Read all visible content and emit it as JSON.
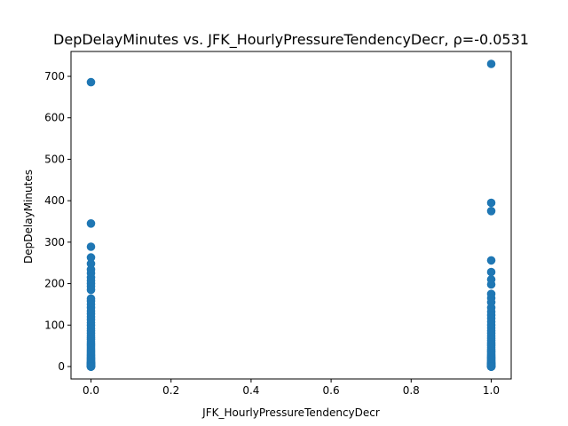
{
  "chart_data": {
    "type": "scatter",
    "title": "DepDelayMinutes vs. JFK_HourlyPressureTendencyDecr, ρ=-0.0531",
    "xlabel": "JFK_HourlyPressureTendencyDecr",
    "ylabel": "DepDelayMinutes",
    "xlim": [
      -0.05,
      1.05
    ],
    "ylim": [
      -30,
      760
    ],
    "grid": false,
    "legend": "none",
    "x_ticks": [
      0.0,
      0.2,
      0.4,
      0.6,
      0.8,
      1.0
    ],
    "x_tick_labels": [
      "0.0",
      "0.2",
      "0.4",
      "0.6",
      "0.8",
      "1.0"
    ],
    "y_ticks": [
      0,
      100,
      200,
      300,
      400,
      500,
      600,
      700
    ],
    "y_tick_labels": [
      "0",
      "100",
      "200",
      "300",
      "400",
      "500",
      "600",
      "700"
    ],
    "series": [
      {
        "color": "#1f77b4",
        "x": [
          0,
          0,
          0,
          0,
          0,
          0,
          0,
          0,
          0,
          0,
          0,
          0,
          0,
          0,
          0,
          0,
          0,
          0,
          0,
          0,
          0,
          0,
          0,
          0,
          0,
          0,
          0,
          0,
          0,
          0,
          0,
          0,
          0,
          0,
          0,
          0,
          0,
          0,
          0,
          0,
          0,
          0,
          0,
          0,
          0,
          0,
          0,
          0,
          0,
          0,
          0,
          0,
          0,
          0,
          0,
          0,
          0,
          0,
          0,
          0,
          0,
          0,
          0,
          0,
          1,
          1,
          1,
          1,
          1,
          1,
          1,
          1,
          1,
          1,
          1,
          1,
          1,
          1,
          1,
          1,
          1,
          1,
          1,
          1,
          1,
          1,
          1,
          1,
          1,
          1,
          1,
          1,
          1,
          1,
          1,
          1,
          1,
          1,
          1,
          1,
          1,
          1,
          1,
          1,
          1,
          1,
          1,
          1,
          1,
          1,
          1,
          1,
          1,
          1,
          1,
          1,
          1,
          1,
          1,
          1,
          1,
          1,
          1,
          1,
          1,
          1
        ],
        "y": [
          686,
          345,
          289,
          263,
          248,
          234,
          225,
          215,
          207,
          200,
          193,
          185,
          164,
          158,
          150,
          142,
          134,
          127,
          120,
          113,
          106,
          99,
          92,
          86,
          80,
          75,
          70,
          65,
          60,
          55,
          51,
          47,
          43,
          39,
          35,
          32,
          29,
          26,
          23,
          20,
          18,
          16,
          14,
          12,
          10,
          9,
          8,
          7,
          6,
          5,
          4,
          3,
          2,
          1,
          0,
          0,
          0,
          0,
          0,
          0,
          0,
          0,
          0,
          0,
          730,
          395,
          375,
          256,
          228,
          210,
          198,
          175,
          165,
          155,
          142,
          132,
          124,
          116,
          108,
          100,
          93,
          86,
          80,
          74,
          68,
          63,
          58,
          54,
          50,
          46,
          42,
          38,
          35,
          32,
          29,
          26,
          23,
          21,
          19,
          17,
          15,
          13,
          11,
          9,
          8,
          7,
          6,
          5,
          4,
          3,
          2,
          1,
          0,
          0,
          0,
          0,
          0,
          0,
          0,
          0,
          0,
          0,
          0,
          0,
          0,
          0
        ]
      }
    ]
  }
}
